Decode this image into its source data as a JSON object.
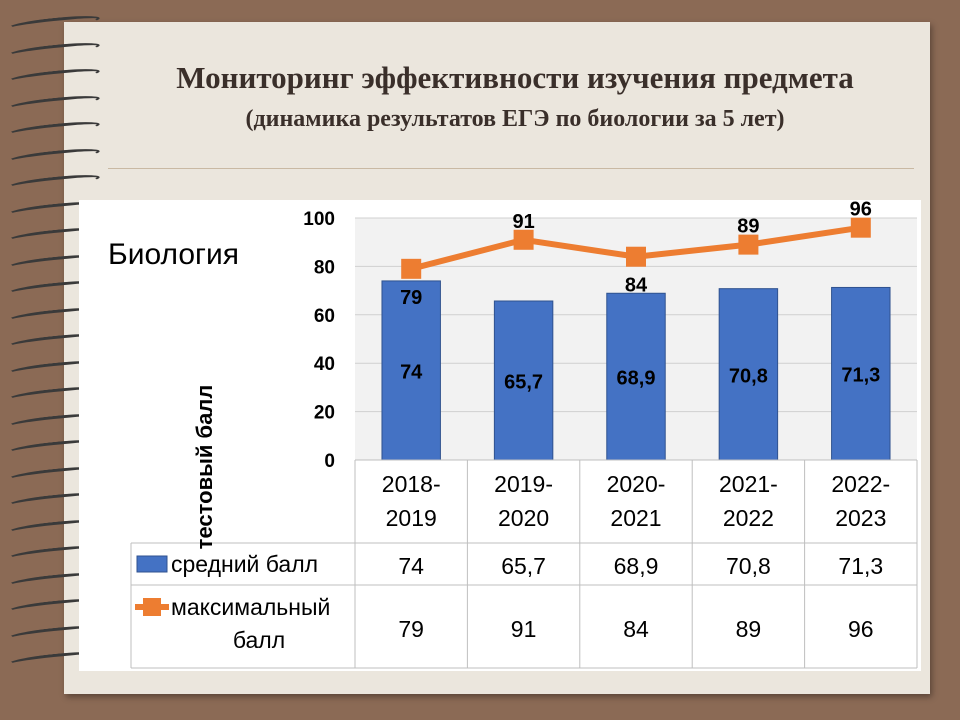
{
  "title": "Мониторинг эффективности изучения предмета",
  "subtitle": "(динамика результатов ЕГЭ по биологии за 5 лет)",
  "chart_data": {
    "type": "bar",
    "label": "Биология",
    "categories": [
      "2018-2019",
      "2019-2020",
      "2020-2021",
      "2021-2022",
      "2022-2023"
    ],
    "category_lines": [
      [
        "2018-",
        "2019"
      ],
      [
        "2019-",
        "2020"
      ],
      [
        "2020-",
        "2021"
      ],
      [
        "2021-",
        "2022"
      ],
      [
        "2022-",
        "2023"
      ]
    ],
    "ylabel": "тестовый балл",
    "ylim": [
      0,
      100
    ],
    "yticks": [
      0,
      20,
      40,
      60,
      80,
      100
    ],
    "grid": true,
    "series": [
      {
        "name": "средний балл",
        "kind": "bar",
        "color": "#4472c4",
        "values": [
          74,
          65.7,
          68.9,
          70.8,
          71.3
        ],
        "labels": [
          "74",
          "65,7",
          "68,9",
          "70,8",
          "71,3"
        ]
      },
      {
        "name": "максимальный балл",
        "name_lines": [
          "максимальный",
          "балл"
        ],
        "kind": "line",
        "color": "#ed7d31",
        "values": [
          79,
          91,
          84,
          89,
          96
        ],
        "labels": [
          "79",
          "91",
          "84",
          "89",
          "96"
        ]
      }
    ],
    "legend": "data-table-below"
  }
}
